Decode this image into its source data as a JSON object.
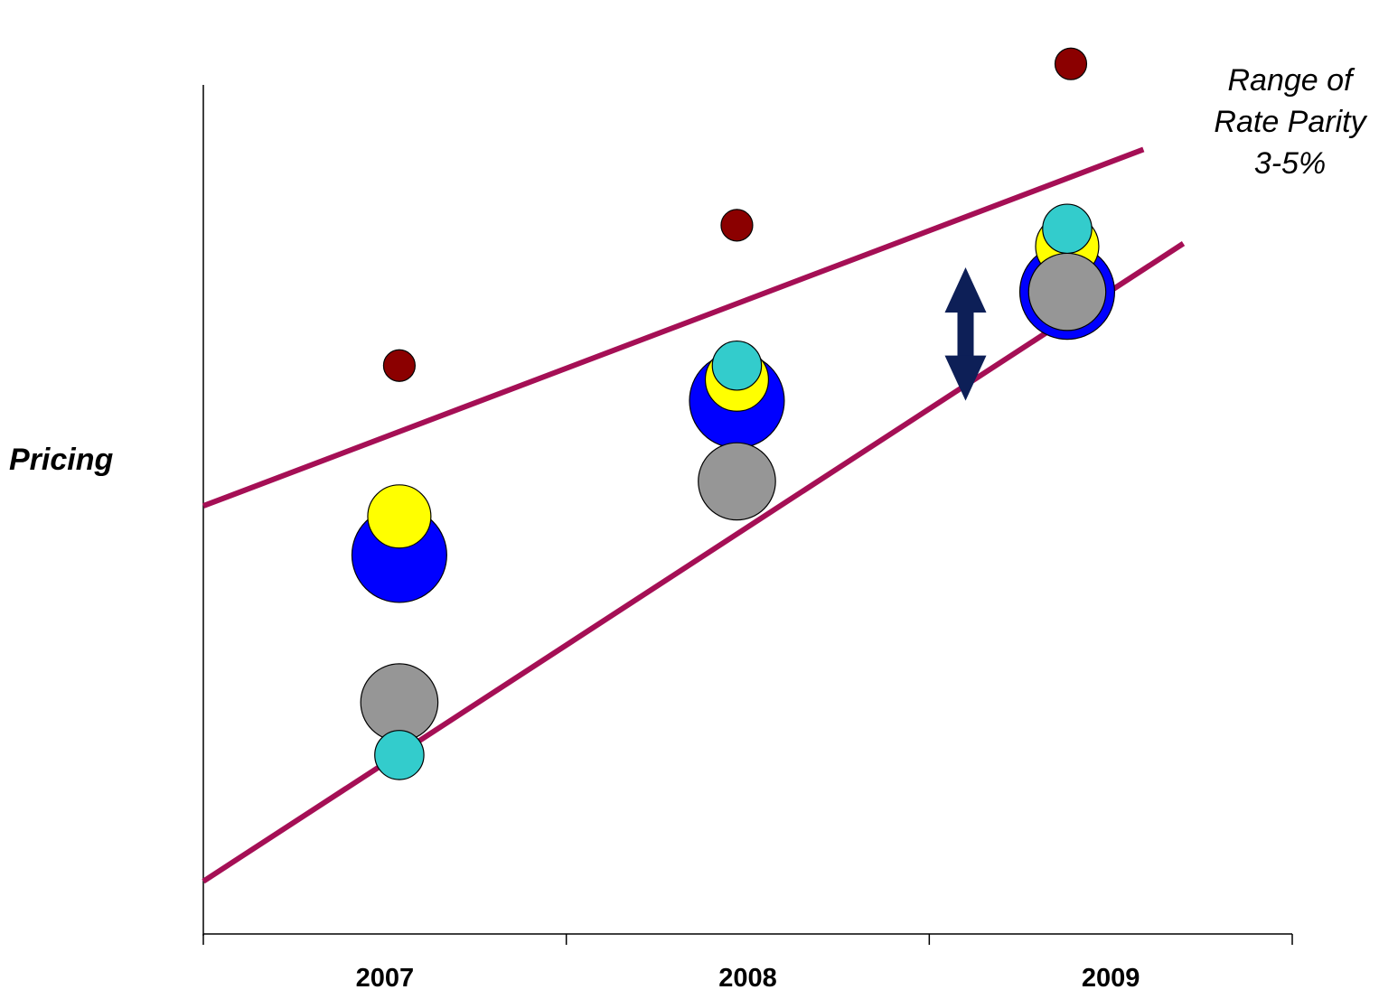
{
  "chart_data": {
    "type": "scatter",
    "categories": [
      "2007",
      "2008",
      "2009"
    ],
    "ylabel": "Pricing",
    "annotation": [
      "Range of",
      "Rate Parity",
      "3-5%"
    ],
    "band_lines": {
      "color": "#a50f55",
      "upper": [
        {
          "x": 0.0,
          "y": 5.5
        },
        {
          "x": 2.59,
          "y": 10.58
        }
      ],
      "lower": [
        {
          "x": 0.0,
          "y": 0.15
        },
        {
          "x": 2.7,
          "y": 9.24
        }
      ]
    },
    "range_marker": {
      "x": 2.1,
      "y_bottom": 7.0,
      "y_top": 8.9,
      "color": "#0d1f57"
    },
    "series": [
      {
        "color": "#8b0000",
        "points": [
          {
            "x": 0.54,
            "y": 7.5,
            "size": 0.45
          },
          {
            "x": 1.47,
            "y": 9.5,
            "size": 0.45
          },
          {
            "x": 2.39,
            "y": 11.8,
            "size": 0.45
          }
        ]
      },
      {
        "color": "#0000ff",
        "points": [
          {
            "x": 0.54,
            "y": 4.8,
            "size": 1.35
          },
          {
            "x": 1.47,
            "y": 7.0,
            "size": 1.35
          },
          {
            "x": 2.38,
            "y": 8.55,
            "size": 1.35
          }
        ]
      },
      {
        "color": "#ffff00",
        "points": [
          {
            "x": 0.54,
            "y": 5.35,
            "size": 0.9
          },
          {
            "x": 1.47,
            "y": 7.3,
            "size": 0.9
          },
          {
            "x": 2.38,
            "y": 9.2,
            "size": 0.9
          }
        ]
      },
      {
        "color": "#969696",
        "points": [
          {
            "x": 0.54,
            "y": 2.7,
            "size": 1.1
          },
          {
            "x": 1.47,
            "y": 5.85,
            "size": 1.1
          },
          {
            "x": 2.38,
            "y": 8.55,
            "size": 1.1
          }
        ]
      },
      {
        "color": "#33cccc",
        "points": [
          {
            "x": 0.54,
            "y": 1.95,
            "size": 0.7
          },
          {
            "x": 1.47,
            "y": 7.5,
            "size": 0.7
          },
          {
            "x": 2.38,
            "y": 9.45,
            "size": 0.7
          }
        ]
      }
    ],
    "xlim": [
      0,
      3
    ],
    "ylim": [
      -0.6,
      11.5
    ],
    "grid": false,
    "legend": "none"
  }
}
